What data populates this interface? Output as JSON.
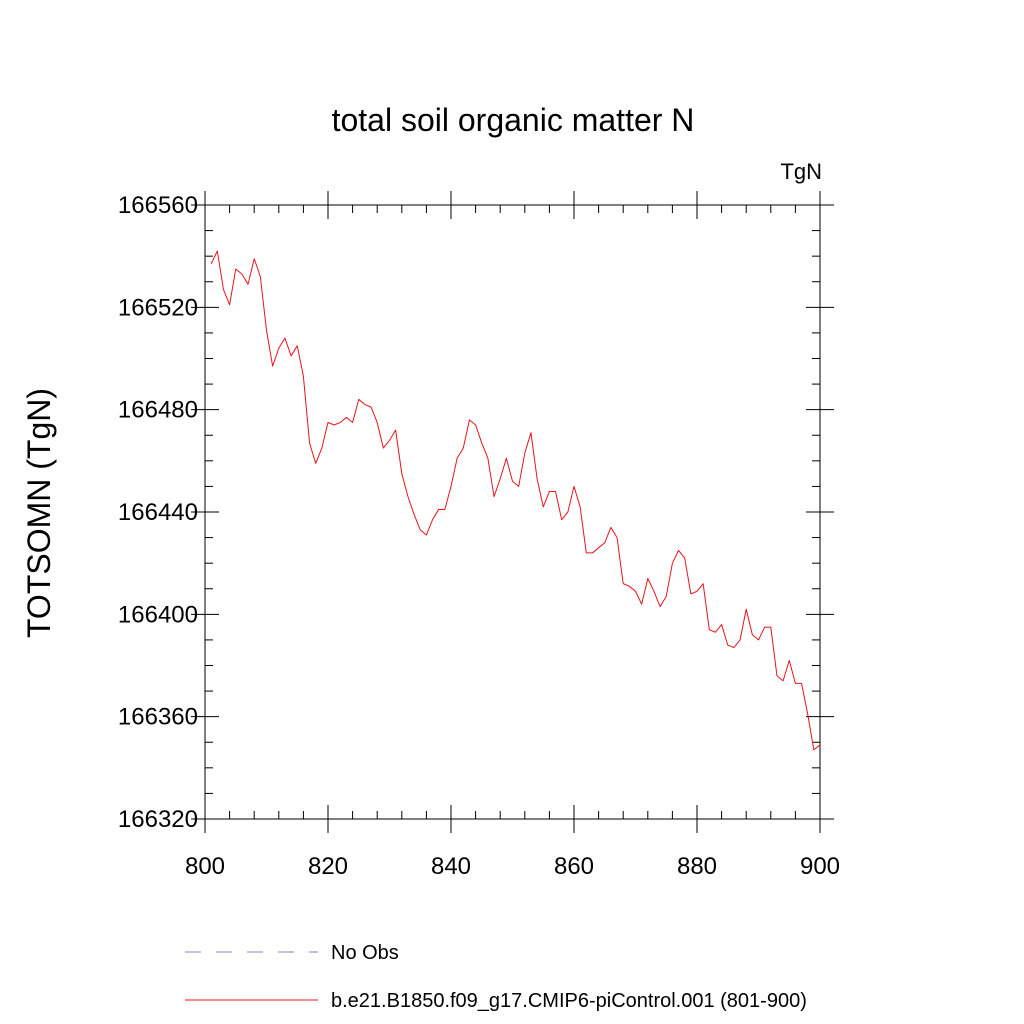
{
  "chart_data": {
    "type": "line",
    "title": "total soil organic matter N",
    "units_label": "TgN",
    "xlabel": "",
    "ylabel": "TOTSOMN  (TgN)",
    "xlim": [
      800,
      900
    ],
    "ylim": [
      166320,
      166560
    ],
    "x_ticks": [
      800,
      820,
      840,
      860,
      880,
      900
    ],
    "y_ticks": [
      166320,
      166360,
      166400,
      166440,
      166480,
      166520,
      166560
    ],
    "x_minor_step": 4,
    "y_minor_step": 10,
    "grid": false,
    "legend": [
      {
        "name": "No Obs",
        "style": "dashed",
        "color": "#8a84c4"
      },
      {
        "name": "b.e21.B1850.f09_g17.CMIP6-piControl.001 (801-900)",
        "style": "solid",
        "color": "#e8141c"
      }
    ],
    "series": [
      {
        "name": "b.e21.B1850.f09_g17.CMIP6-piControl.001 (801-900)",
        "color": "#e8141c",
        "x": [
          801,
          802,
          803,
          804,
          805,
          806,
          807,
          808,
          809,
          810,
          811,
          812,
          813,
          814,
          815,
          816,
          817,
          818,
          819,
          820,
          821,
          822,
          823,
          824,
          825,
          826,
          827,
          828,
          829,
          830,
          831,
          832,
          833,
          834,
          835,
          836,
          837,
          838,
          839,
          840,
          841,
          842,
          843,
          844,
          845,
          846,
          847,
          848,
          849,
          850,
          851,
          852,
          853,
          854,
          855,
          856,
          857,
          858,
          859,
          860,
          861,
          862,
          863,
          864,
          865,
          866,
          867,
          868,
          869,
          870,
          871,
          872,
          873,
          874,
          875,
          876,
          877,
          878,
          879,
          880,
          881,
          882,
          883,
          884,
          885,
          886,
          887,
          888,
          889,
          890,
          891,
          892,
          893,
          894,
          895,
          896,
          897,
          898,
          899,
          900
        ],
        "values": [
          166537,
          166542,
          166527,
          166521,
          166535,
          166533,
          166529,
          166539,
          166532,
          166511,
          166497,
          166504,
          166508,
          166501,
          166505,
          166493,
          166467,
          166459,
          166465,
          166475,
          166474,
          166475,
          166477,
          166475,
          166484,
          166482,
          166481,
          166475,
          166465,
          166468,
          166472,
          166455,
          166446,
          166439,
          166433,
          166431,
          166437,
          166441,
          166441,
          166450,
          166461,
          166465,
          166476,
          166474,
          166467,
          166461,
          166446,
          166453,
          166461,
          166452,
          166450,
          166463,
          166471,
          166453,
          166442,
          166448,
          166448,
          166437,
          166440,
          166450,
          166442,
          166424,
          166424,
          166426,
          166428,
          166434,
          166430,
          166412,
          166411,
          166409,
          166404,
          166414,
          166409,
          166403,
          166407,
          166420,
          166425,
          166422,
          166408,
          166409,
          166412,
          166394,
          166393,
          166396,
          166388,
          166387,
          166390,
          166402,
          166392,
          166390,
          166395,
          166395,
          166376,
          166374,
          166382,
          166373,
          166373,
          166361,
          166347,
          166349
        ]
      }
    ]
  }
}
